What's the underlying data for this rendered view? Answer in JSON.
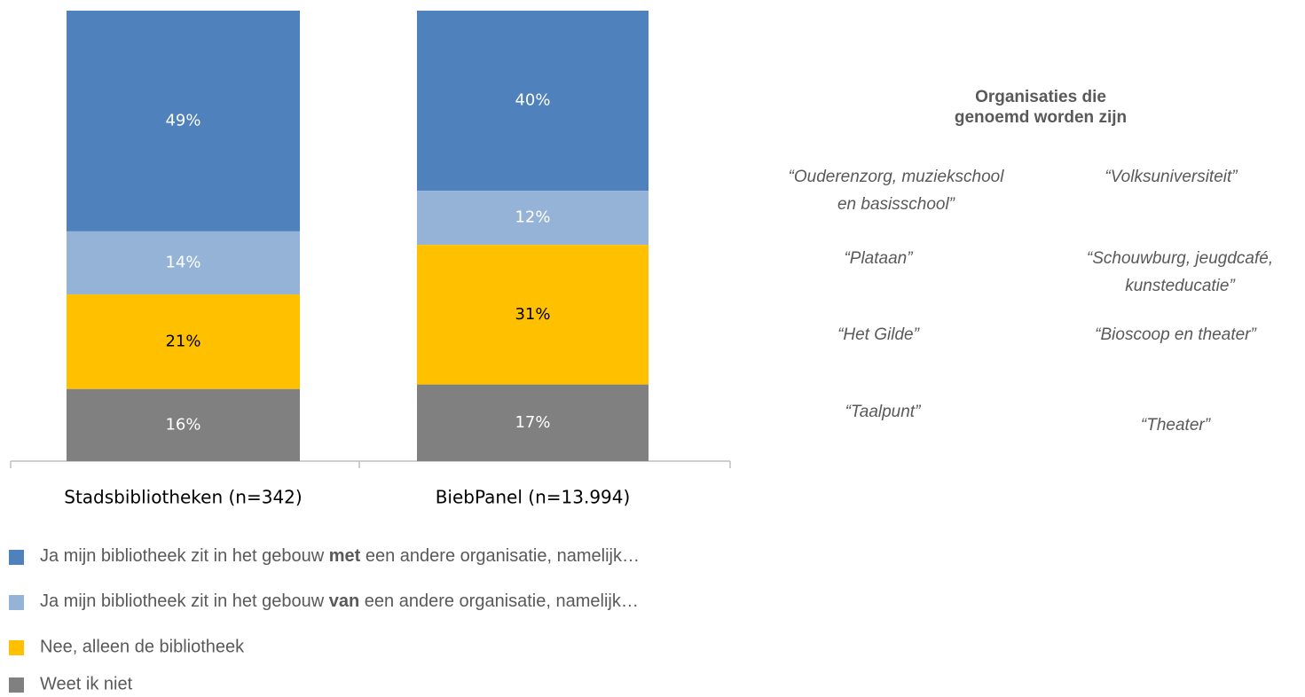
{
  "chart_data": {
    "type": "stacked_bar",
    "categories": [
      "Stadsbibliotheken (n=342)",
      "BiebPanel (n=13.994)"
    ],
    "ylim": [
      0,
      100
    ],
    "series": [
      {
        "name": "Ja mijn bibliotheek zit in het gebouw met een andere organisatie, namelijk…",
        "emphasis": "met",
        "color": "#4f81bd",
        "label_color": "#ffffff",
        "values": [
          49,
          40
        ],
        "value_labels": [
          "49%",
          "40%"
        ]
      },
      {
        "name": "Ja mijn bibliotheek zit in het gebouw van een andere organisatie, namelijk…",
        "emphasis": "van",
        "color": "#95b3d7",
        "label_color": "#ffffff",
        "values": [
          14,
          12
        ],
        "value_labels": [
          "14%",
          "12%"
        ]
      },
      {
        "name": "Nee, alleen de bibliotheek",
        "color": "#ffc000",
        "label_color": "#000000",
        "values": [
          21,
          31
        ],
        "value_labels": [
          "21%",
          "31%"
        ]
      },
      {
        "name": "Weet ik niet",
        "color": "#808080",
        "label_color": "#ffffff",
        "values": [
          16,
          17
        ],
        "value_labels": [
          "16%",
          "17%"
        ]
      }
    ],
    "side_title": [
      "Organisaties die",
      "genoemd worden zijn"
    ],
    "annotations": [
      {
        "lines": [
          "“Ouderenzorg, muziekschool",
          "en basisschool”"
        ]
      },
      {
        "lines": [
          "“Volksuniversiteit”"
        ]
      },
      {
        "lines": [
          "“Plataan”"
        ]
      },
      {
        "lines": [
          "“Schouwburg, jeugdcafé,",
          "kunsteducatie”"
        ]
      },
      {
        "lines": [
          "“Het Gilde”"
        ]
      },
      {
        "lines": [
          "“Bioscoop en theater”"
        ]
      },
      {
        "lines": [
          "“Taalpunt”"
        ]
      },
      {
        "lines": [
          "“Theater”"
        ]
      }
    ]
  }
}
